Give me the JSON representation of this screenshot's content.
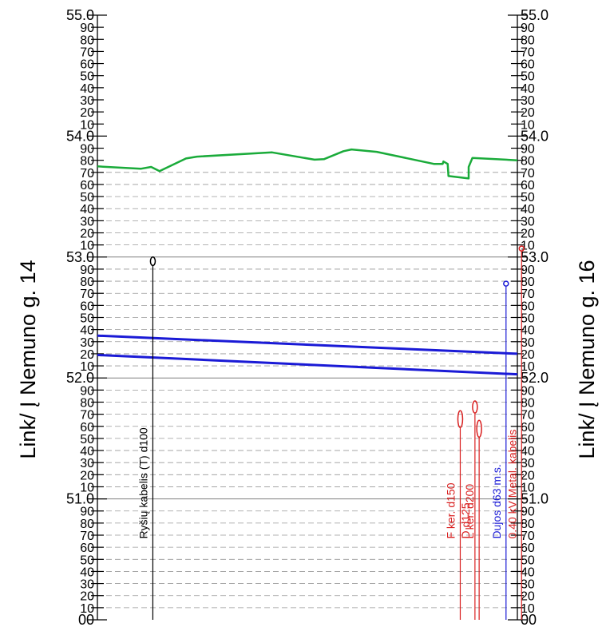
{
  "left_label": "Link/ Į Nemuno g. 14",
  "right_label": "Link/ Į Nemuno g. 16",
  "scale": {
    "major_labels": [
      "55.0",
      "54.0",
      "53.0",
      "52.0",
      "51.0"
    ],
    "minor_labels": [
      "90",
      "80",
      "70",
      "60",
      "50",
      "40",
      "30",
      "20",
      "10"
    ],
    "bottom_label": "00"
  },
  "chart_data": {
    "type": "profile",
    "y_range": [
      50.0,
      55.0
    ],
    "x_range": [
      0,
      100
    ],
    "ground_line": {
      "color": "#1aab3a",
      "points": [
        [
          0,
          53.75
        ],
        [
          10.3,
          53.73
        ],
        [
          12.8,
          53.745
        ],
        [
          14.8,
          53.71
        ],
        [
          21.1,
          53.815
        ],
        [
          23.7,
          53.83
        ],
        [
          41.6,
          53.865
        ],
        [
          51.7,
          53.805
        ],
        [
          54.0,
          53.81
        ],
        [
          58.6,
          53.875
        ],
        [
          60.5,
          53.89
        ],
        [
          66.5,
          53.87
        ],
        [
          80.1,
          53.77
        ],
        [
          82.2,
          53.77
        ],
        [
          82.4,
          53.79
        ],
        [
          83.4,
          53.77
        ],
        [
          83.6,
          53.67
        ],
        [
          88.4,
          53.65
        ],
        [
          88.4,
          53.745
        ],
        [
          89.3,
          53.82
        ],
        [
          100,
          53.8
        ]
      ]
    },
    "pipes": [
      {
        "color": "#1a1ad6",
        "start": 52.35,
        "end": 52.2
      },
      {
        "color": "#1a1ad6",
        "start": 52.19,
        "end": 52.03
      }
    ],
    "utilities": [
      {
        "label": "Ryšių kabelis (T) d100",
        "color": "#000000",
        "x": 13.2,
        "top": 53.0,
        "symbol_height": 0.07
      },
      {
        "label": "F ker. d150",
        "color": "#d92020",
        "x": 86.4,
        "top": 51.73,
        "symbol_height": 0.14
      },
      {
        "label": "D d125",
        "color": "#d92020",
        "x": 89.9,
        "top": 51.81,
        "symbol_height": 0.1
      },
      {
        "label": "L ker. d200",
        "color": "#d92020",
        "x": 90.9,
        "top": 51.65,
        "symbol_height": 0.14
      },
      {
        "label": "Dujos d63 m.s.",
        "color": "#1a1ad6",
        "x": 97.3,
        "top": 52.8,
        "symbol_height": 0.04
      },
      {
        "label": "0.40 kV Metal. kabelis",
        "color": "#d92020",
        "x": 101.0,
        "top": 53.09,
        "symbol_height": 0.03
      }
    ]
  }
}
